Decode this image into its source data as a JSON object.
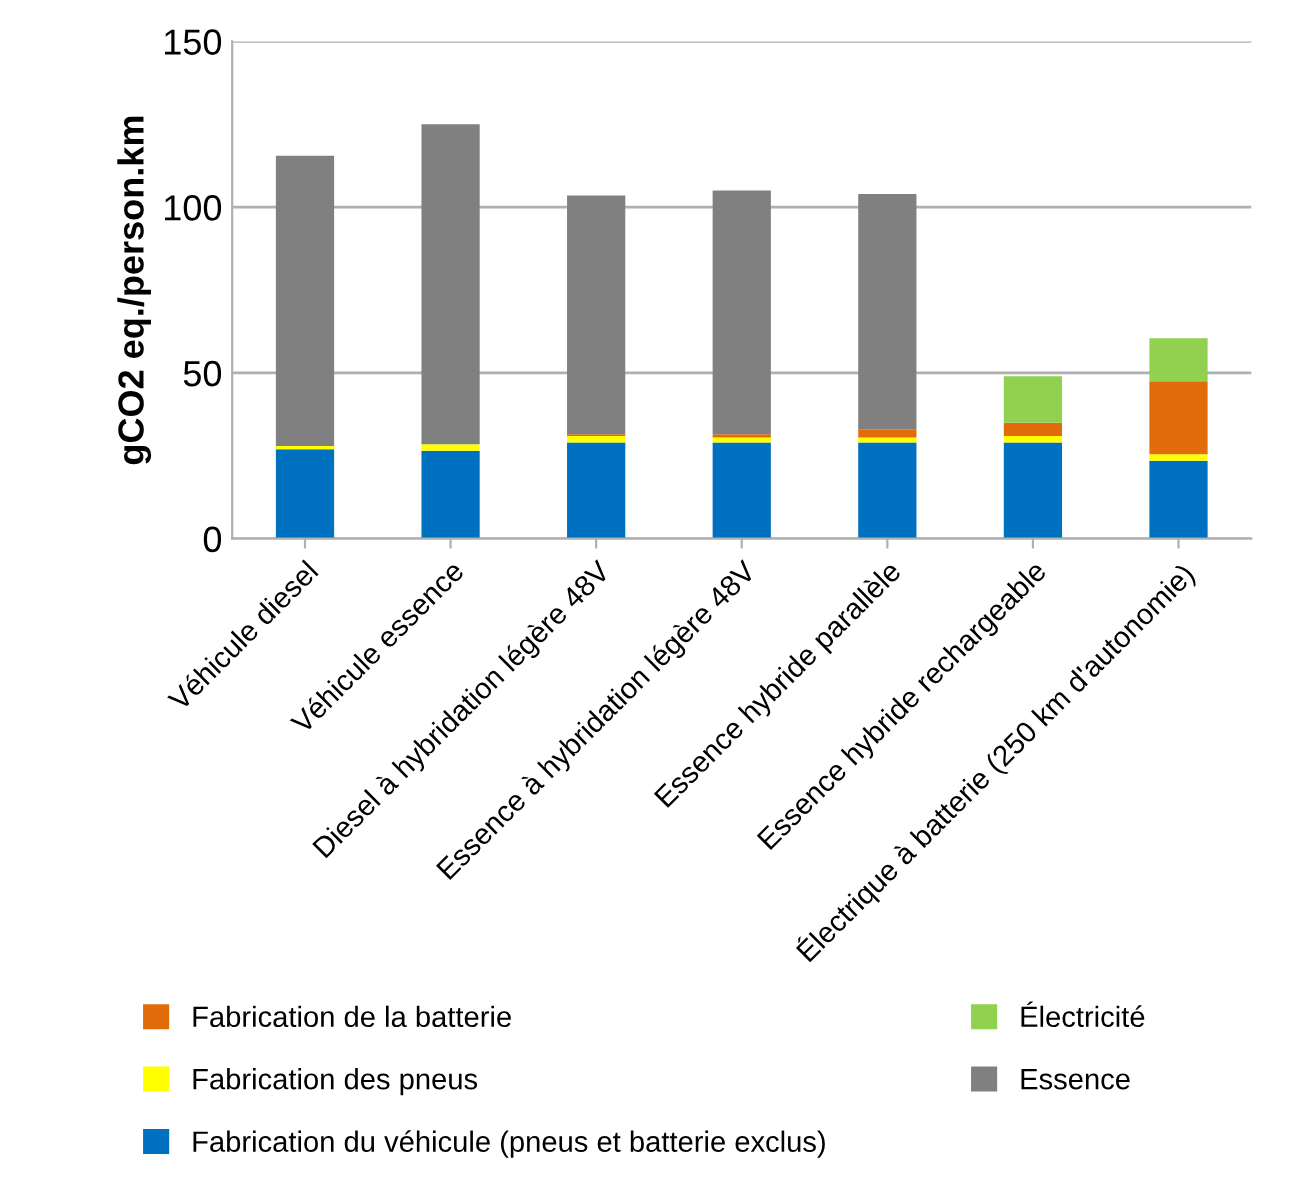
{
  "chart_data": {
    "type": "bar",
    "stacked": true,
    "ylabel": "gCO2 eq./person.km",
    "categories": [
      "Véhicule diesel",
      "Véhicule essence",
      "Diesel à hybridation légère 48V",
      "Essence à hybridation légère 48V",
      "Essence hybride parallèle",
      "Essence hybride rechargeable",
      "Électrique à batterie (250 km d'autonomie)"
    ],
    "series": [
      {
        "name": "Fabrication du véhicule (pneus et batterie exclus)",
        "color": "#0070c0",
        "values": [
          27,
          26.5,
          29,
          29,
          29,
          29,
          23.5
        ]
      },
      {
        "name": "Fabrication des pneus",
        "color": "#ffff00",
        "values": [
          1,
          2,
          2,
          1.5,
          1.5,
          2,
          2
        ]
      },
      {
        "name": "Fabrication de la batterie",
        "color": "#e36c0a",
        "values": [
          0,
          0,
          0.5,
          1,
          2.5,
          4,
          22
        ]
      },
      {
        "name": "Électricité",
        "color": "#92d050",
        "values": [
          0,
          0,
          0,
          0,
          0,
          14,
          13
        ]
      },
      {
        "name": "Essence",
        "color": "#808080",
        "values": [
          87.5,
          96.5,
          72,
          73.5,
          71,
          0,
          0
        ]
      }
    ],
    "ylim": [
      0,
      150
    ],
    "yticks": [
      0,
      50,
      100,
      150
    ],
    "grid": "y",
    "legend": "bottom"
  }
}
